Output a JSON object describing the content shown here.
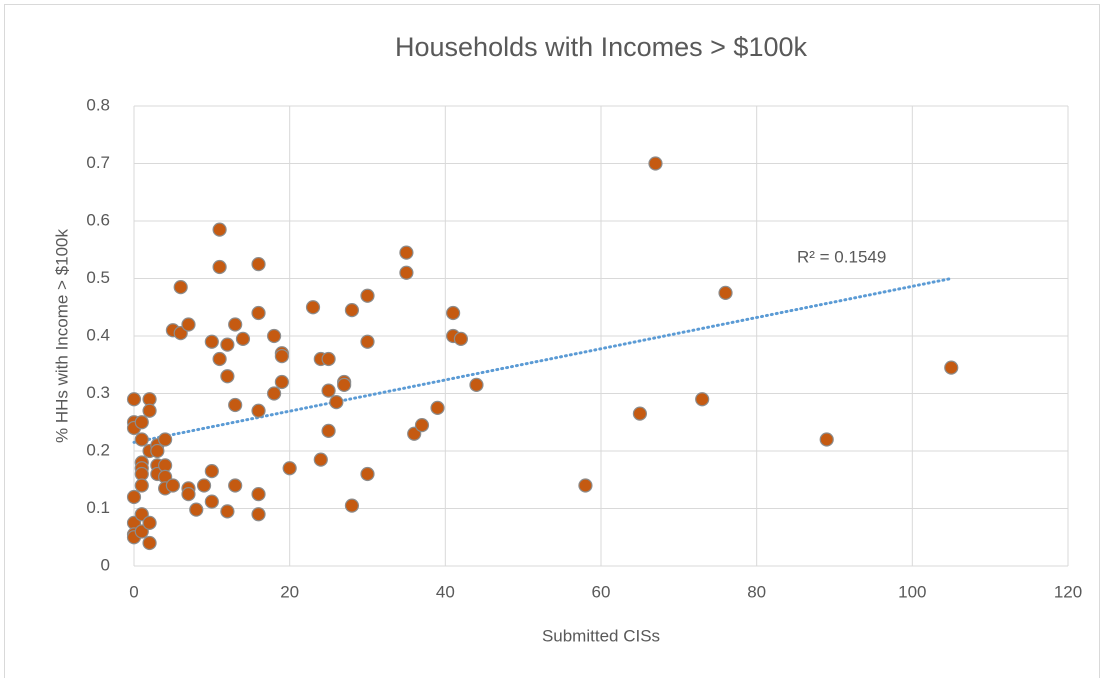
{
  "chart_data": {
    "type": "scatter",
    "title": "Households with Incomes > $100k",
    "x_label": "Submitted CISs",
    "y_label": "% HHs with Income > $100k",
    "annotation": "R² = 0.1549",
    "color": "#c55a11",
    "trendline": {
      "color": "#5b9bd5",
      "x": [
        0,
        105
      ],
      "y": [
        0.215,
        0.5
      ]
    },
    "xlim": [
      0,
      120
    ],
    "xticks": [
      0,
      20,
      40,
      60,
      80,
      100,
      120
    ],
    "ylim": [
      0,
      0.8
    ],
    "yticks": [
      0,
      0.1,
      0.2,
      0.3,
      0.4,
      0.5,
      0.6,
      0.7,
      0.8
    ],
    "grid": true,
    "x": [
      0,
      0,
      0,
      0,
      0,
      0,
      0,
      1,
      1,
      1,
      1,
      1,
      1,
      1,
      1,
      2,
      2,
      2,
      2,
      2,
      3,
      3,
      3,
      3,
      4,
      4,
      4,
      4,
      5,
      5,
      6,
      6,
      7,
      7,
      7,
      8,
      9,
      10,
      10,
      10,
      11,
      11,
      11,
      12,
      12,
      12,
      13,
      13,
      13,
      14,
      16,
      16,
      16,
      16,
      16,
      18,
      18,
      19,
      19,
      19,
      20,
      23,
      24,
      24,
      25,
      25,
      25,
      26,
      27,
      27,
      28,
      28,
      30,
      30,
      30,
      35,
      35,
      36,
      37,
      39,
      41,
      41,
      42,
      44,
      58,
      65,
      67,
      73,
      76,
      89,
      105
    ],
    "values": [
      0.29,
      0.25,
      0.24,
      0.12,
      0.075,
      0.055,
      0.05,
      0.25,
      0.22,
      0.18,
      0.17,
      0.16,
      0.14,
      0.09,
      0.06,
      0.29,
      0.27,
      0.2,
      0.075,
      0.04,
      0.21,
      0.2,
      0.175,
      0.16,
      0.22,
      0.175,
      0.155,
      0.135,
      0.41,
      0.14,
      0.485,
      0.405,
      0.42,
      0.135,
      0.125,
      0.098,
      0.14,
      0.39,
      0.165,
      0.112,
      0.585,
      0.52,
      0.36,
      0.385,
      0.33,
      0.095,
      0.42,
      0.28,
      0.14,
      0.395,
      0.525,
      0.44,
      0.27,
      0.125,
      0.09,
      0.4,
      0.3,
      0.37,
      0.365,
      0.32,
      0.17,
      0.45,
      0.36,
      0.185,
      0.36,
      0.305,
      0.235,
      0.285,
      0.32,
      0.315,
      0.445,
      0.105,
      0.47,
      0.39,
      0.16,
      0.545,
      0.51,
      0.23,
      0.245,
      0.275,
      0.44,
      0.4,
      0.395,
      0.315,
      0.14,
      0.265,
      0.7,
      0.29,
      0.475,
      0.22,
      0.345
    ]
  }
}
